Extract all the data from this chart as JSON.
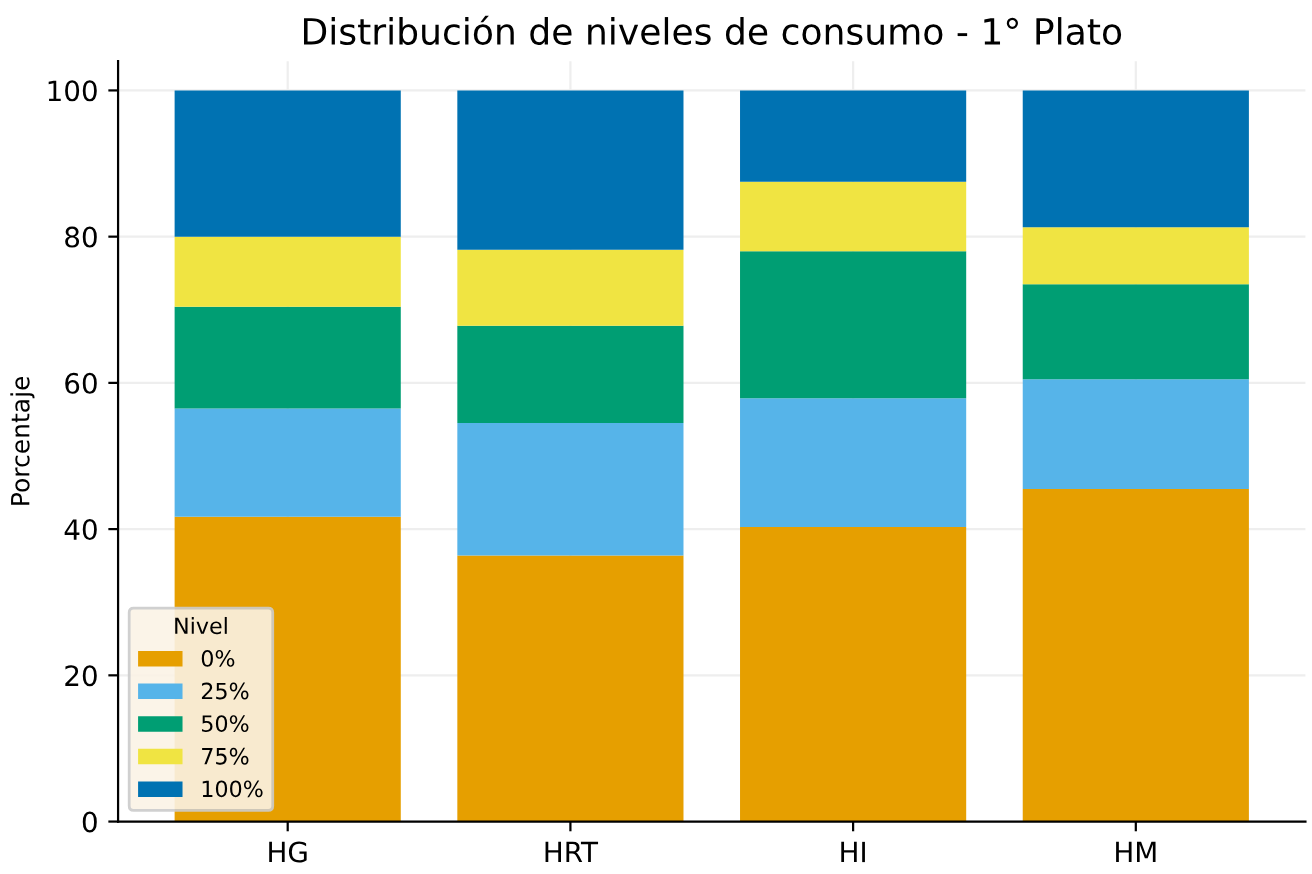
{
  "chart_data": {
    "type": "bar",
    "stacked": true,
    "title": "Distribución de niveles de consumo - 1° Plato",
    "ylabel": "Porcentaje",
    "legend_title": "Nivel",
    "legend": "bottom left",
    "grid": true,
    "categories": [
      "HG",
      "HRT",
      "HI",
      "HM"
    ],
    "ylim": [
      0,
      104
    ],
    "yticks": [
      0,
      20,
      40,
      60,
      80,
      100
    ],
    "series": [
      {
        "name": "0%",
        "color": "#e69f00",
        "values": [
          41.7,
          36.4,
          40.3,
          45.5
        ]
      },
      {
        "name": "25%",
        "color": "#56b4e9",
        "values": [
          14.8,
          18.1,
          17.6,
          15.0
        ]
      },
      {
        "name": "50%",
        "color": "#009e73",
        "values": [
          13.9,
          13.3,
          20.1,
          13.0
        ]
      },
      {
        "name": "75%",
        "color": "#f0e442",
        "values": [
          9.6,
          10.4,
          9.5,
          7.8
        ]
      },
      {
        "name": "100%",
        "color": "#0072b2",
        "values": [
          20.0,
          21.8,
          12.5,
          18.7
        ]
      }
    ]
  }
}
